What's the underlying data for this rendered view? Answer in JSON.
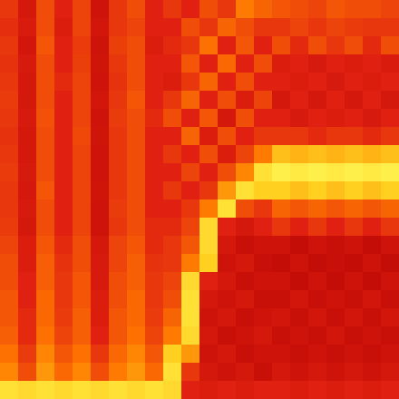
{
  "chart_data": {
    "type": "heatmap",
    "tick_labels": false,
    "grid": false,
    "zlim": [
      0,
      1
    ],
    "cells": [
      [
        0.55,
        0.45,
        0.6,
        0.5,
        0.58,
        0.42,
        0.55,
        0.6,
        0.5,
        0.55,
        0.5,
        0.6,
        0.55,
        0.7,
        0.65,
        0.62,
        0.6,
        0.58,
        0.62,
        0.6,
        0.6,
        0.58
      ],
      [
        0.53,
        0.47,
        0.6,
        0.48,
        0.58,
        0.44,
        0.55,
        0.58,
        0.5,
        0.5,
        0.6,
        0.55,
        0.65,
        0.6,
        0.55,
        0.55,
        0.58,
        0.55,
        0.58,
        0.56,
        0.55,
        0.55
      ],
      [
        0.55,
        0.44,
        0.62,
        0.5,
        0.56,
        0.42,
        0.57,
        0.6,
        0.48,
        0.52,
        0.55,
        0.68,
        0.5,
        0.62,
        0.5,
        0.6,
        0.52,
        0.6,
        0.55,
        0.6,
        0.52,
        0.6
      ],
      [
        0.54,
        0.46,
        0.6,
        0.5,
        0.57,
        0.43,
        0.55,
        0.6,
        0.5,
        0.5,
        0.62,
        0.5,
        0.66,
        0.5,
        0.6,
        0.48,
        0.5,
        0.46,
        0.5,
        0.48,
        0.5,
        0.47
      ],
      [
        0.55,
        0.45,
        0.6,
        0.52,
        0.58,
        0.42,
        0.54,
        0.6,
        0.5,
        0.48,
        0.55,
        0.65,
        0.5,
        0.6,
        0.5,
        0.5,
        0.48,
        0.5,
        0.46,
        0.5,
        0.48,
        0.5
      ],
      [
        0.56,
        0.45,
        0.6,
        0.5,
        0.58,
        0.44,
        0.55,
        0.62,
        0.5,
        0.55,
        0.65,
        0.5,
        0.6,
        0.48,
        0.58,
        0.45,
        0.5,
        0.45,
        0.5,
        0.45,
        0.5,
        0.45
      ],
      [
        0.55,
        0.46,
        0.61,
        0.5,
        0.58,
        0.42,
        0.56,
        0.6,
        0.52,
        0.6,
        0.5,
        0.62,
        0.45,
        0.6,
        0.5,
        0.5,
        0.46,
        0.5,
        0.48,
        0.5,
        0.46,
        0.5
      ],
      [
        0.54,
        0.45,
        0.6,
        0.5,
        0.59,
        0.43,
        0.55,
        0.6,
        0.5,
        0.5,
        0.65,
        0.48,
        0.6,
        0.5,
        0.55,
        0.55,
        0.55,
        0.52,
        0.55,
        0.55,
        0.52,
        0.55
      ],
      [
        0.55,
        0.45,
        0.6,
        0.5,
        0.58,
        0.42,
        0.55,
        0.6,
        0.5,
        0.55,
        0.5,
        0.6,
        0.48,
        0.58,
        0.7,
        0.82,
        0.8,
        0.82,
        0.8,
        0.82,
        0.8,
        0.82
      ],
      [
        0.56,
        0.46,
        0.6,
        0.5,
        0.58,
        0.42,
        0.55,
        0.6,
        0.5,
        0.5,
        0.58,
        0.5,
        0.6,
        0.72,
        0.9,
        0.95,
        0.93,
        0.95,
        0.93,
        0.95,
        0.93,
        0.95
      ],
      [
        0.55,
        0.45,
        0.62,
        0.5,
        0.58,
        0.43,
        0.55,
        0.6,
        0.5,
        0.55,
        0.5,
        0.55,
        0.75,
        0.9,
        0.85,
        0.85,
        0.82,
        0.85,
        0.82,
        0.85,
        0.82,
        0.85
      ],
      [
        0.55,
        0.46,
        0.6,
        0.5,
        0.58,
        0.42,
        0.56,
        0.6,
        0.5,
        0.5,
        0.55,
        0.7,
        0.9,
        0.6,
        0.55,
        0.65,
        0.62,
        0.65,
        0.62,
        0.65,
        0.62,
        0.65
      ],
      [
        0.56,
        0.45,
        0.6,
        0.5,
        0.58,
        0.42,
        0.55,
        0.6,
        0.52,
        0.52,
        0.58,
        0.88,
        0.5,
        0.45,
        0.5,
        0.55,
        0.5,
        0.55,
        0.5,
        0.55,
        0.5,
        0.55
      ],
      [
        0.58,
        0.48,
        0.62,
        0.52,
        0.6,
        0.45,
        0.58,
        0.62,
        0.52,
        0.55,
        0.62,
        0.88,
        0.45,
        0.4,
        0.42,
        0.42,
        0.38,
        0.42,
        0.4,
        0.42,
        0.38,
        0.42
      ],
      [
        0.6,
        0.48,
        0.64,
        0.54,
        0.6,
        0.46,
        0.58,
        0.64,
        0.54,
        0.55,
        0.7,
        0.85,
        0.42,
        0.45,
        0.4,
        0.38,
        0.42,
        0.38,
        0.4,
        0.38,
        0.42,
        0.38
      ],
      [
        0.6,
        0.5,
        0.64,
        0.55,
        0.62,
        0.46,
        0.6,
        0.64,
        0.55,
        0.58,
        0.88,
        0.5,
        0.45,
        0.4,
        0.42,
        0.42,
        0.38,
        0.42,
        0.38,
        0.42,
        0.38,
        0.42
      ],
      [
        0.62,
        0.5,
        0.66,
        0.55,
        0.62,
        0.48,
        0.6,
        0.66,
        0.55,
        0.6,
        0.9,
        0.45,
        0.42,
        0.45,
        0.4,
        0.4,
        0.44,
        0.4,
        0.42,
        0.4,
        0.44,
        0.4
      ],
      [
        0.62,
        0.52,
        0.66,
        0.56,
        0.64,
        0.48,
        0.62,
        0.66,
        0.56,
        0.65,
        0.9,
        0.42,
        0.45,
        0.4,
        0.42,
        0.44,
        0.4,
        0.44,
        0.4,
        0.44,
        0.4,
        0.44
      ],
      [
        0.64,
        0.52,
        0.68,
        0.58,
        0.64,
        0.5,
        0.62,
        0.68,
        0.58,
        0.7,
        0.88,
        0.45,
        0.4,
        0.42,
        0.45,
        0.4,
        0.42,
        0.4,
        0.44,
        0.4,
        0.42,
        0.4
      ],
      [
        0.68,
        0.56,
        0.72,
        0.62,
        0.68,
        0.55,
        0.66,
        0.72,
        0.62,
        0.85,
        0.75,
        0.42,
        0.45,
        0.4,
        0.42,
        0.42,
        0.4,
        0.42,
        0.4,
        0.42,
        0.4,
        0.42
      ],
      [
        0.72,
        0.6,
        0.75,
        0.66,
        0.72,
        0.6,
        0.7,
        0.75,
        0.66,
        0.9,
        0.55,
        0.45,
        0.42,
        0.45,
        0.4,
        0.45,
        0.42,
        0.45,
        0.42,
        0.45,
        0.42,
        0.45
      ],
      [
        0.9,
        0.88,
        0.9,
        0.88,
        0.9,
        0.88,
        0.9,
        0.88,
        0.9,
        0.88,
        0.5,
        0.48,
        0.5,
        0.48,
        0.5,
        0.5,
        0.48,
        0.5,
        0.48,
        0.5,
        0.48,
        0.5
      ]
    ]
  }
}
